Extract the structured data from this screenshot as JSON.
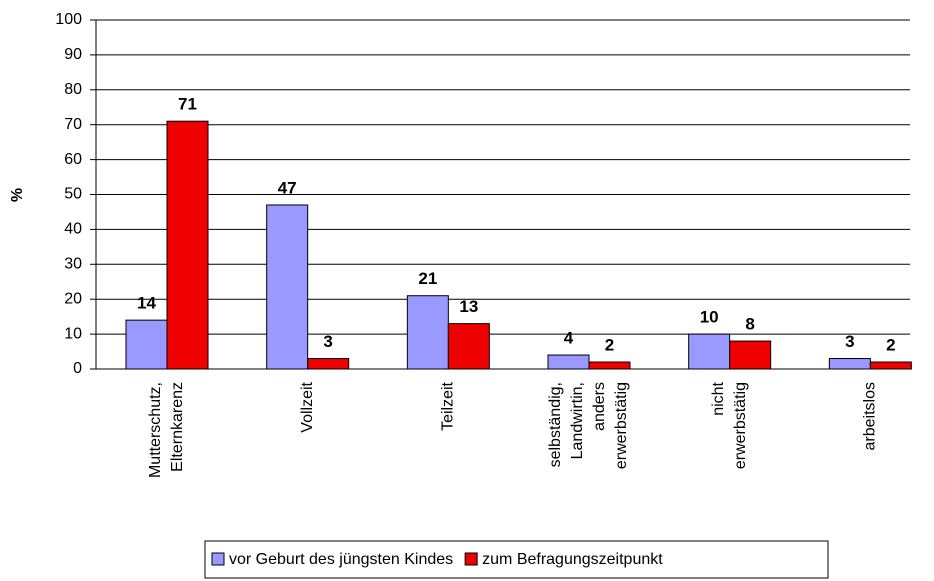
{
  "chart_data": {
    "type": "bar",
    "y_label": "%",
    "categories": [
      [
        "Mutterschutz,",
        "Elternkarenz"
      ],
      [
        "Vollzeit"
      ],
      [
        "Teilzeit"
      ],
      [
        "selbständig,",
        "Landwirtin,",
        "anders",
        "erwerbstätig"
      ],
      [
        "nicht",
        "erwerbstätig"
      ],
      [
        "arbeitslos"
      ]
    ],
    "series": [
      {
        "name": "vor Geburt des jüngsten Kindes",
        "color": "#9999ff",
        "values": [
          14,
          47,
          21,
          4,
          10,
          3
        ]
      },
      {
        "name": "zum Befragungszeitpunkt",
        "color": "#ee0000",
        "values": [
          71,
          3,
          13,
          2,
          8,
          2
        ]
      }
    ],
    "ylim": [
      0,
      100
    ],
    "yticks": [
      0,
      10,
      20,
      30,
      40,
      50,
      60,
      70,
      80,
      90,
      100
    ],
    "grid": true
  }
}
